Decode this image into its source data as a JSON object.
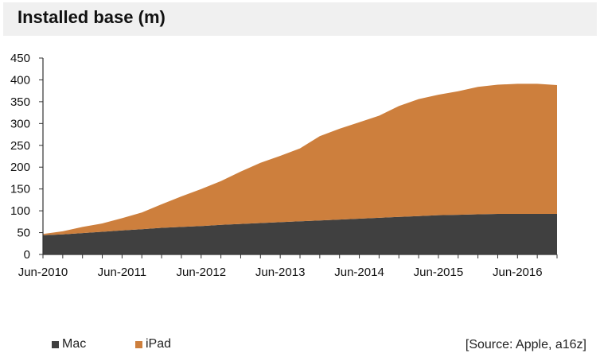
{
  "title": "Installed base (m)",
  "source": "[Source: Apple, a16z]",
  "colors": {
    "mac": "#404040",
    "ipad": "#cd7f3d",
    "axis": "#333333"
  },
  "chart_data": {
    "type": "area",
    "stacked": true,
    "title": "Installed base (m)",
    "xlabel": "",
    "ylabel": "",
    "ylim": [
      0,
      450
    ],
    "yticks": [
      0,
      50,
      100,
      150,
      200,
      250,
      300,
      350,
      400,
      450
    ],
    "xtick_labels": [
      "Jun-2010",
      "Jun-2011",
      "Jun-2012",
      "Jun-2013",
      "Jun-2014",
      "Jun-2015",
      "Jun-2016"
    ],
    "x": [
      "Jun-2010",
      "Sep-2010",
      "Dec-2010",
      "Mar-2011",
      "Jun-2011",
      "Sep-2011",
      "Dec-2011",
      "Mar-2012",
      "Jun-2012",
      "Sep-2012",
      "Dec-2012",
      "Mar-2013",
      "Jun-2013",
      "Sep-2013",
      "Dec-2013",
      "Mar-2014",
      "Jun-2014",
      "Sep-2014",
      "Dec-2014",
      "Mar-2015",
      "Jun-2015",
      "Sep-2015",
      "Dec-2015",
      "Mar-2016",
      "Jun-2016",
      "Sep-2016",
      "Dec-2016"
    ],
    "grid": false,
    "legend_position": "bottom-left",
    "series": [
      {
        "name": "Mac",
        "values": [
          44,
          46,
          49,
          52,
          55,
          58,
          61,
          63,
          65,
          68,
          70,
          72,
          74,
          76,
          78,
          80,
          82,
          84,
          86,
          88,
          90,
          91,
          92,
          93,
          93,
          93,
          93
        ]
      },
      {
        "name": "iPad",
        "values": [
          3,
          7,
          14,
          19,
          28,
          38,
          54,
          70,
          85,
          100,
          120,
          138,
          152,
          167,
          193,
          208,
          221,
          234,
          254,
          268,
          276,
          283,
          292,
          296,
          298,
          298,
          295
        ]
      }
    ]
  }
}
